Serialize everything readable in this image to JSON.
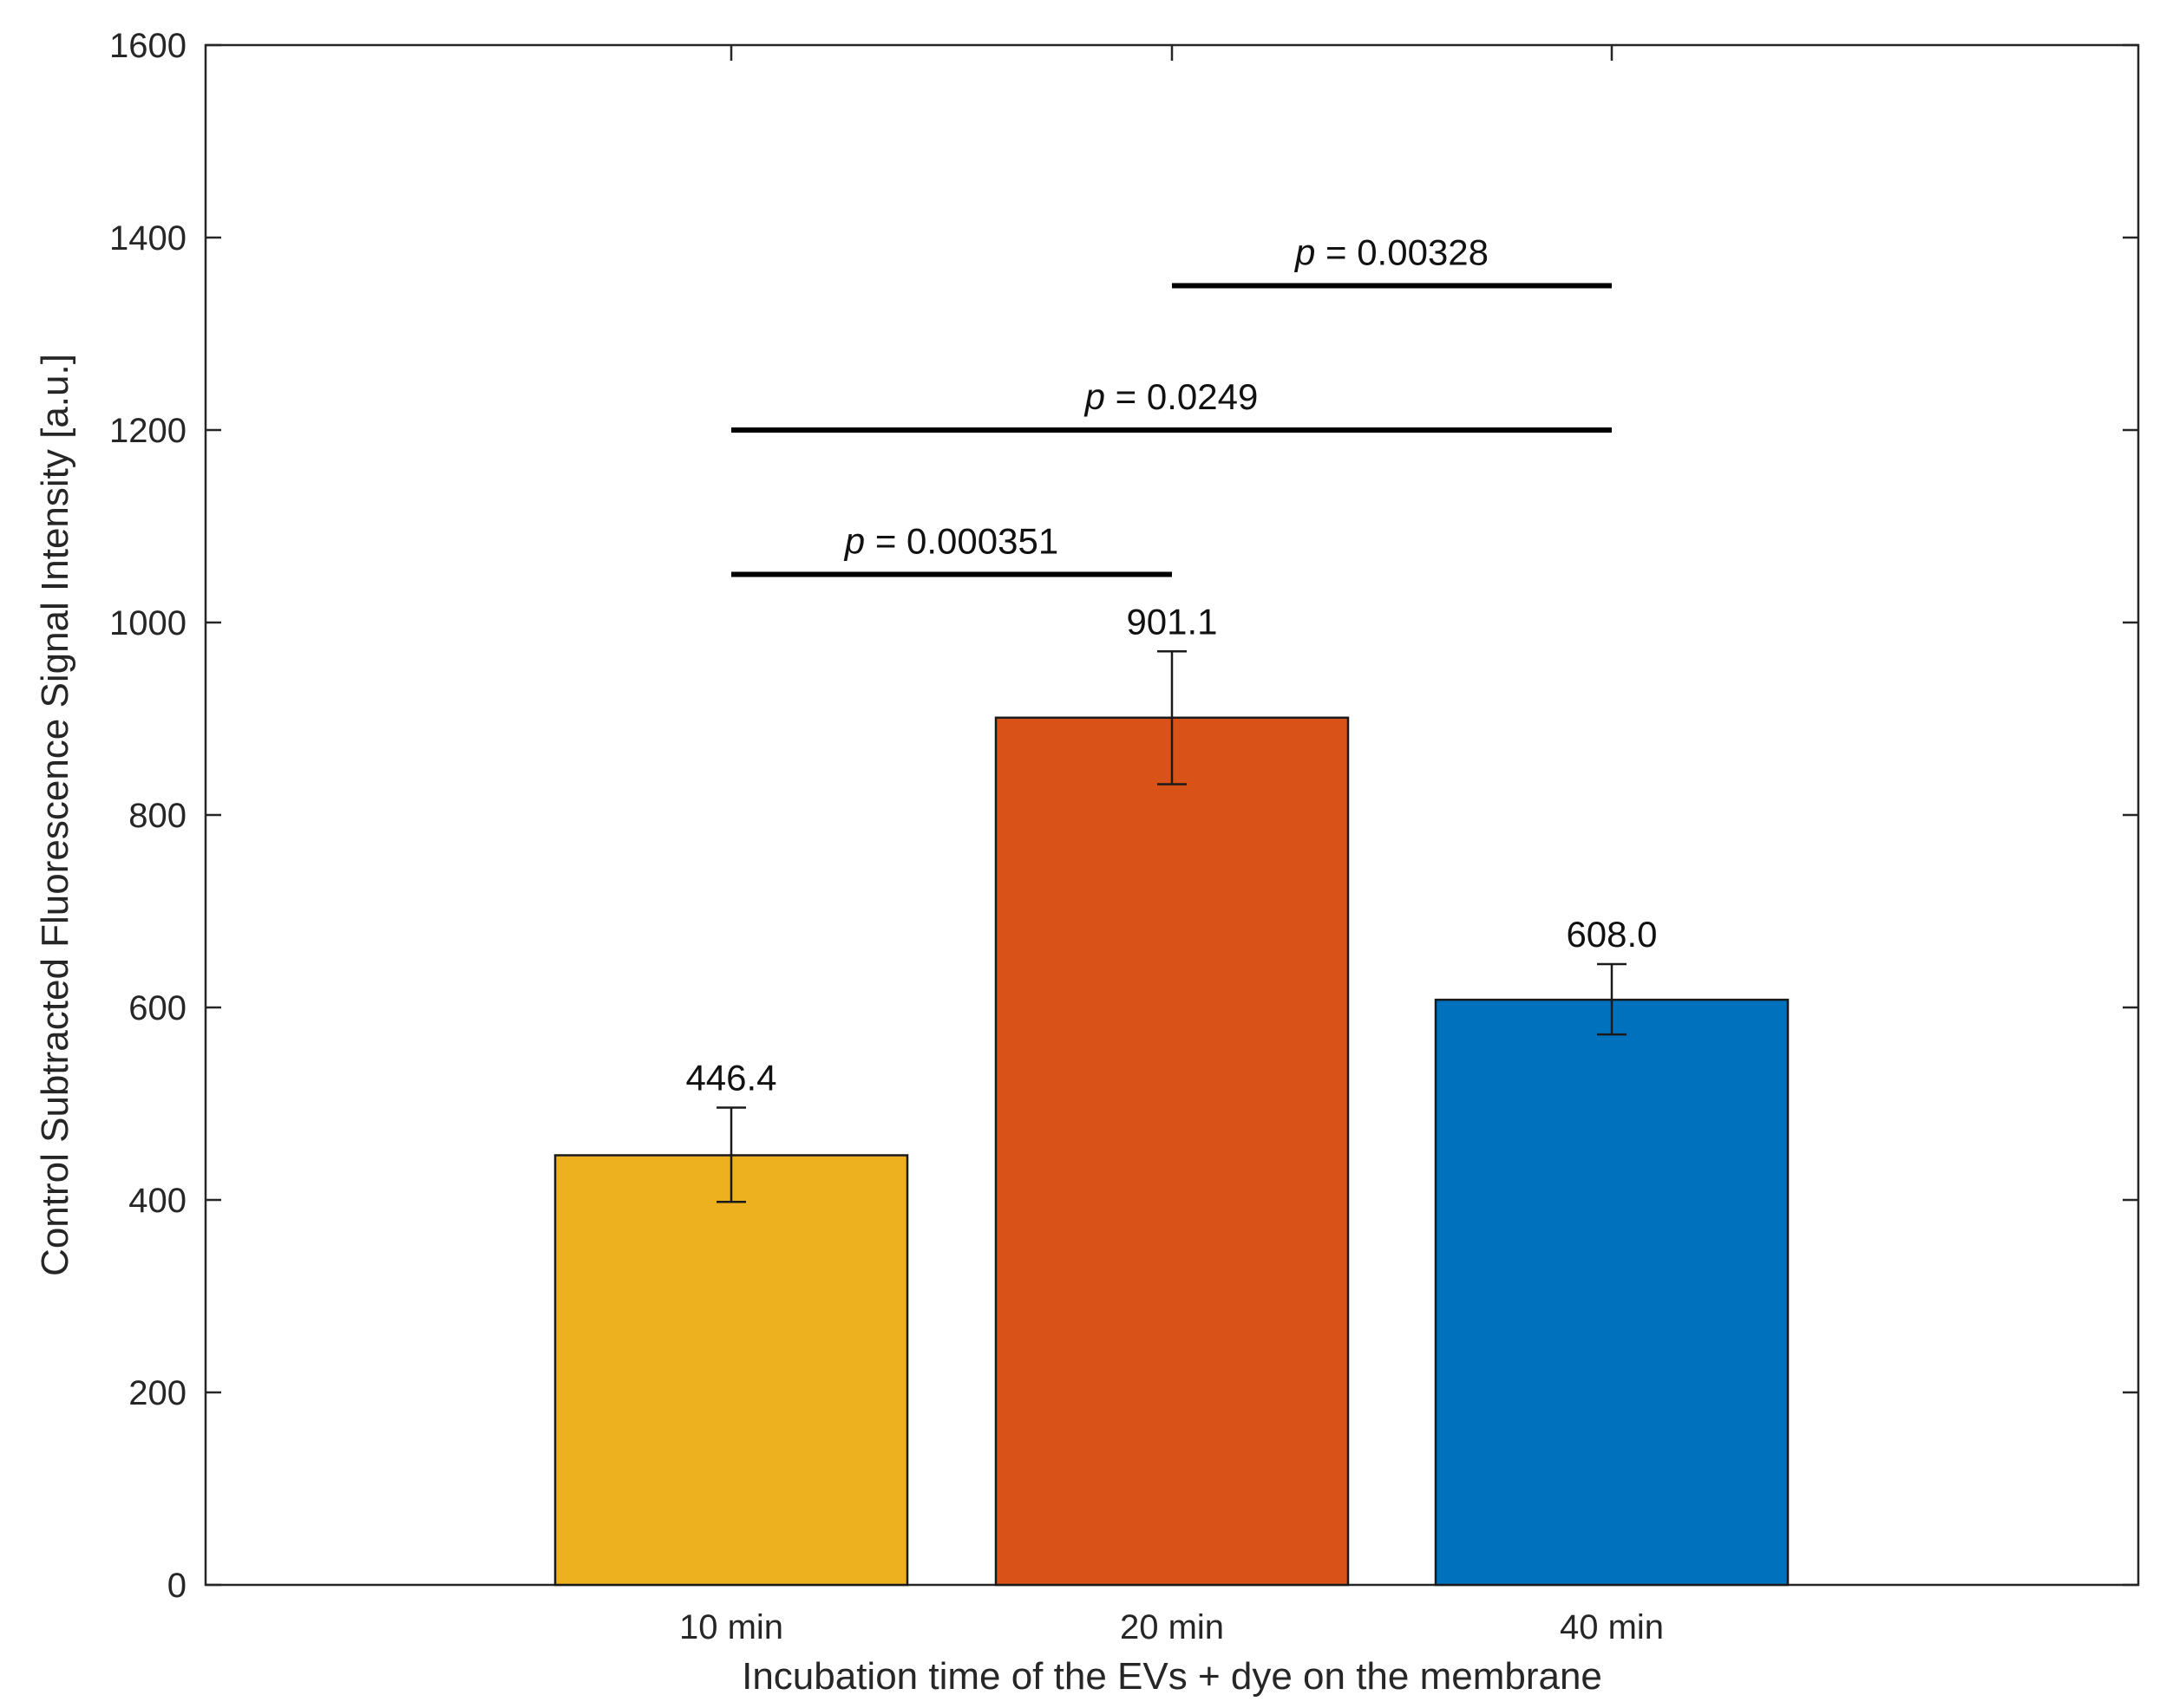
{
  "chart_data": {
    "type": "bar",
    "title": "",
    "xlabel": "Incubation time of the EVs + dye on the membrane",
    "ylabel": "Control Subtracted Fluorescence Signal Intensity [a.u.]",
    "ylim": [
      0,
      1600
    ],
    "yticks": [
      0,
      200,
      400,
      600,
      800,
      1000,
      1200,
      1400,
      1600
    ],
    "grid": false,
    "categories": [
      "10 min",
      "20 min",
      "40 min"
    ],
    "values": [
      446.4,
      901.1,
      608.0
    ],
    "value_labels": [
      "446.4",
      "901.1",
      "608.0"
    ],
    "error_bars": [
      {
        "low": 398,
        "high": 496
      },
      {
        "low": 832,
        "high": 970
      },
      {
        "low": 572,
        "high": 645
      }
    ],
    "colors": [
      "#EDB120",
      "#D95319",
      "#0072BD"
    ],
    "significance": [
      {
        "from": 0,
        "to": 1,
        "y": 1050,
        "prefix": "p",
        "label": " = 0.000351"
      },
      {
        "from": 0,
        "to": 2,
        "y": 1200,
        "prefix": "p",
        "label": " = 0.0249"
      },
      {
        "from": 1,
        "to": 2,
        "y": 1350,
        "prefix": "p",
        "label": " = 0.00328"
      }
    ]
  }
}
